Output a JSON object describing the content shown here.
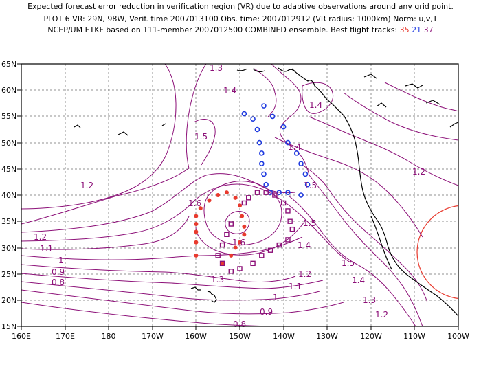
{
  "titles": {
    "line1": "Expected forecast error reduction in verification region (VR) due to adaptive observations around any grid point.",
    "line2": "PLOT 6 VR: 29N, 98W, Verif. time 2007013100 Obs. time: 2007012912 (VR radius: 1000km) Norm: u,v,T",
    "line3_prefix": "NCEP/UM ETKF based on 111-member 2007012500 COMBINED ensemble.  Best flight tracks:",
    "tracks": [
      "35",
      "21",
      "37"
    ]
  },
  "colors": {
    "track_35": "#e83a2e",
    "track_21": "#1e3ae0",
    "track_37": "#8c1078",
    "contour": "#8c1078",
    "coast": "#000000",
    "vr_circle": "#e83a2e"
  },
  "axes": {
    "lat_labels": [
      "65N",
      "60N",
      "55N",
      "50N",
      "45N",
      "40N",
      "35N",
      "30N",
      "25N",
      "20N",
      "15N"
    ],
    "lon_labels": [
      "160E",
      "170E",
      "180",
      "170W",
      "160W",
      "150W",
      "140W",
      "130W",
      "120W",
      "110W",
      "100W"
    ]
  },
  "contour_labels": [
    "1.3",
    "1.4",
    "1.4",
    "1.4",
    "1.5",
    "1.2",
    "1.2",
    "1.6",
    "1.5",
    "1.5",
    "1.2",
    "1.1",
    "1",
    "0.9",
    "0.8",
    "1.6",
    "1.4",
    "1.5",
    "1.3",
    "1.2",
    "1.4",
    "1.1",
    "1",
    "1.3",
    "0.9",
    "1.2",
    "0.8"
  ],
  "tracks": {
    "track_35": [
      [
        -159,
        37.5
      ],
      [
        -157,
        39
      ],
      [
        -155,
        40
      ],
      [
        -153,
        40.5
      ],
      [
        -151,
        39.5
      ],
      [
        -150,
        38
      ],
      [
        -160,
        36
      ],
      [
        -160,
        34.5
      ],
      [
        -160,
        33
      ],
      [
        -160,
        31
      ],
      [
        -160,
        28.5
      ],
      [
        -154,
        27
      ],
      [
        -152,
        28.5
      ],
      [
        -151,
        30
      ],
      [
        -150,
        31
      ],
      [
        -149,
        32.5
      ],
      [
        -149,
        34
      ],
      [
        -149.5,
        36
      ]
    ],
    "track_21": [
      [
        -149,
        55.5
      ],
      [
        -147,
        54.5
      ],
      [
        -146,
        52.5
      ],
      [
        -145.5,
        50
      ],
      [
        -145,
        48
      ],
      [
        -145,
        46
      ],
      [
        -144.5,
        44
      ],
      [
        -144,
        42
      ],
      [
        -143,
        40.5
      ],
      [
        -141,
        40.5
      ],
      [
        -139,
        40.5
      ],
      [
        -136,
        40
      ],
      [
        -134.5,
        42
      ],
      [
        -135,
        44
      ],
      [
        -136,
        46
      ],
      [
        -137,
        48
      ],
      [
        -139,
        50
      ],
      [
        -140,
        53
      ],
      [
        -142.5,
        55
      ],
      [
        -144.5,
        57
      ]
    ],
    "track_37": [
      [
        -149,
        38.5
      ],
      [
        -148,
        39.5
      ],
      [
        -146,
        40.5
      ],
      [
        -144,
        40.5
      ],
      [
        -142,
        40
      ],
      [
        -140,
        38.5
      ],
      [
        -139,
        37
      ],
      [
        -138.5,
        35
      ],
      [
        -138,
        33.5
      ],
      [
        -139,
        31.5
      ],
      [
        -141,
        30.5
      ],
      [
        -143,
        29.5
      ],
      [
        -145,
        28.5
      ],
      [
        -147,
        27
      ],
      [
        -150,
        26
      ],
      [
        -152,
        25.5
      ],
      [
        -154,
        27
      ],
      [
        -155,
        28.5
      ],
      [
        -154,
        30.5
      ],
      [
        -153,
        32.5
      ],
      [
        -152,
        34.5
      ]
    ]
  }
}
